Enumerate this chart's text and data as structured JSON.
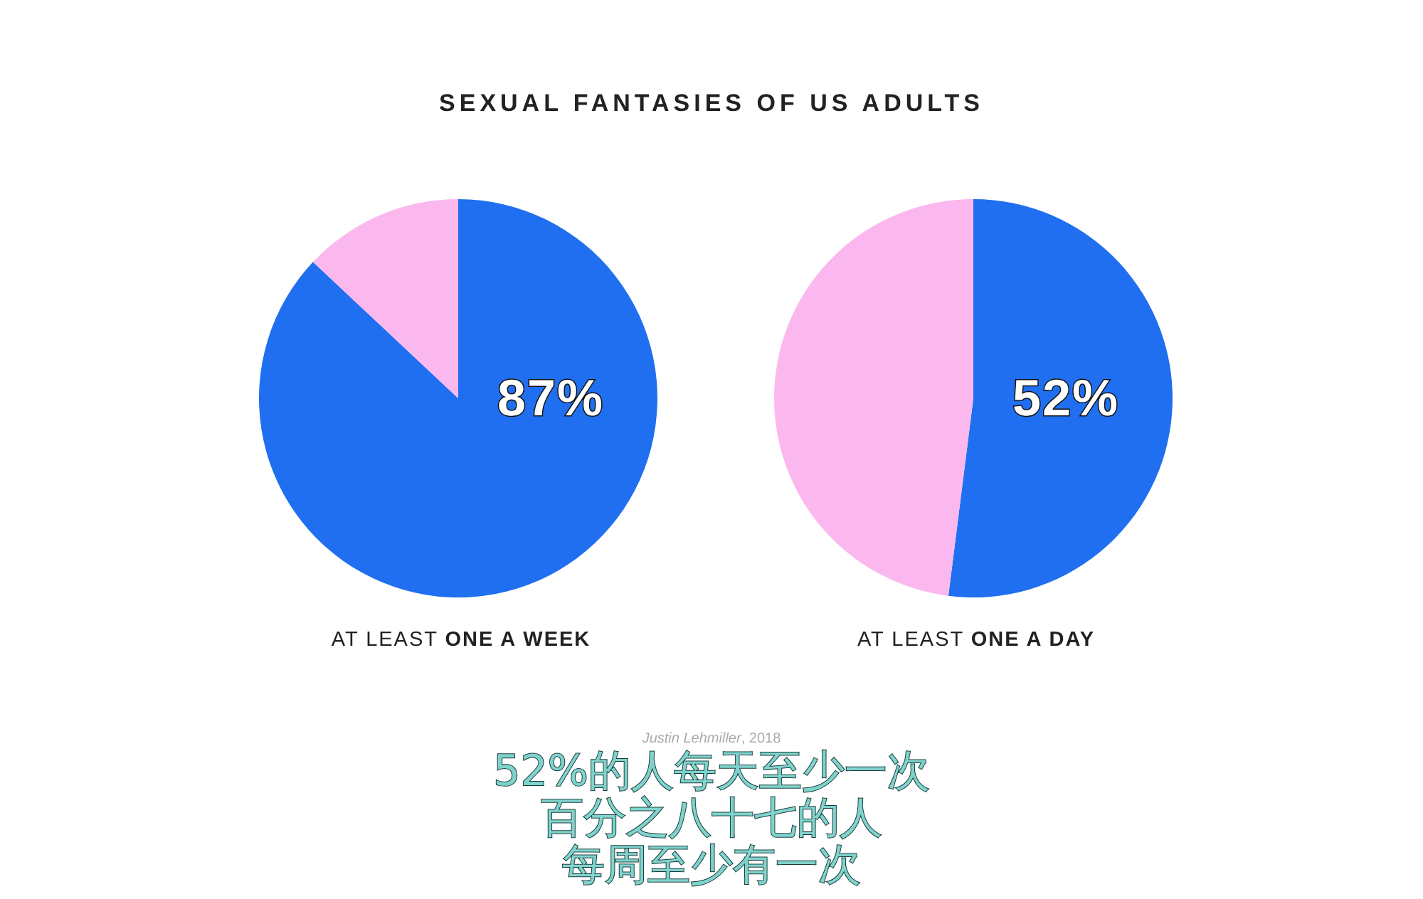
{
  "chart_data": [
    {
      "type": "pie",
      "title": "SEXUAL FANTASIES OF US ADULTS",
      "xlabel": "AT LEAST **ONE A WEEK**",
      "categories": [
        null,
        null
      ],
      "values": [
        87,
        13
      ],
      "colors": [
        "#1f6ff0",
        "#fbb8ee"
      ],
      "value_labels": [
        "87%",
        null
      ]
    },
    {
      "type": "pie",
      "xlabel": "AT LEAST **ONE A DAY**",
      "categories": [
        null,
        null
      ],
      "values": [
        52,
        48
      ],
      "colors": [
        "#1f6ff0",
        "#fbb8ee"
      ],
      "value_labels": [
        "52%",
        null
      ],
      "annotations": [
        "*Justin Lehmiller*, 2018",
        "52%的人每天至少一次",
        "百分之八十七的人",
        "每周至少有一次"
      ]
    }
  ]
}
